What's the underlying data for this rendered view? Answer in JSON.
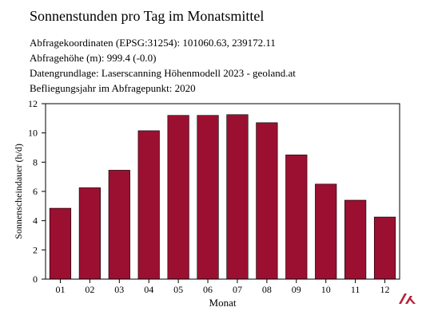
{
  "header": {
    "title": "Sonnenstunden pro Tag im Monatsmittel",
    "info_lines": [
      "Abfragekoordinaten (EPSG:31254): 101060.63, 239172.11",
      "Abfragehöhe (m): 999.4 (-0.0)",
      "Datengrundlage: Laserscanning Höhenmodell 2023 - geoland.at",
      "Befliegungsjahr im Abfragepunkt: 2020"
    ]
  },
  "colors": {
    "bar": "#9b1030",
    "logo": "#b3243c"
  },
  "logo": {
    "icon": "stacked-chevrons-logo-icon"
  },
  "chart_data": {
    "type": "bar",
    "title": "Sonnenstunden pro Tag im Monatsmittel",
    "xlabel": "Monat",
    "ylabel": "Sonnenscheindauer (h/d)",
    "categories": [
      "01",
      "02",
      "03",
      "04",
      "05",
      "06",
      "07",
      "08",
      "09",
      "10",
      "11",
      "12"
    ],
    "values": [
      4.85,
      6.25,
      7.45,
      10.15,
      11.2,
      11.2,
      11.25,
      10.7,
      8.5,
      6.5,
      5.4,
      4.25
    ],
    "ylim": [
      0,
      12
    ],
    "yticks": [
      0,
      2,
      4,
      6,
      8,
      10,
      12
    ],
    "grid": false,
    "legend": "none"
  }
}
